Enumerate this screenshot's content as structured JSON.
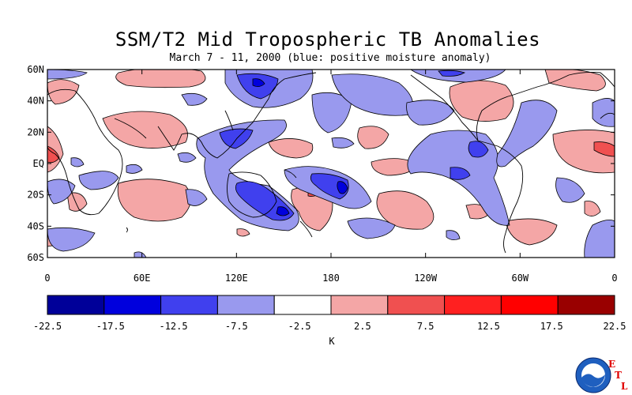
{
  "title": "SSM/T2 Mid Tropospheric TB Anomalies",
  "subtitle": "March 7 - 11, 2000 (blue: positive moisture anomaly)",
  "map": {
    "lat_labels": [
      "60N",
      "40N",
      "20N",
      "EQ",
      "20S",
      "40S",
      "60S"
    ],
    "lon_labels": [
      "0",
      "60E",
      "120E",
      "180",
      "120W",
      "60W",
      "0"
    ]
  },
  "colorbar": {
    "labels": [
      "-22.5",
      "-17.5",
      "-12.5",
      "-7.5",
      "-2.5",
      "2.5",
      "7.5",
      "12.5",
      "17.5",
      "22.5"
    ],
    "colors": [
      "#000099",
      "#0000dd",
      "#4040ee",
      "#9999ee",
      "#ffffff",
      "#f4a6a6",
      "#f05050",
      "#ff2020",
      "#ff0000",
      "#990000"
    ],
    "unit": "K"
  },
  "logo": {
    "letters": [
      "E",
      "T",
      "L"
    ],
    "badge": "NOAA"
  }
}
